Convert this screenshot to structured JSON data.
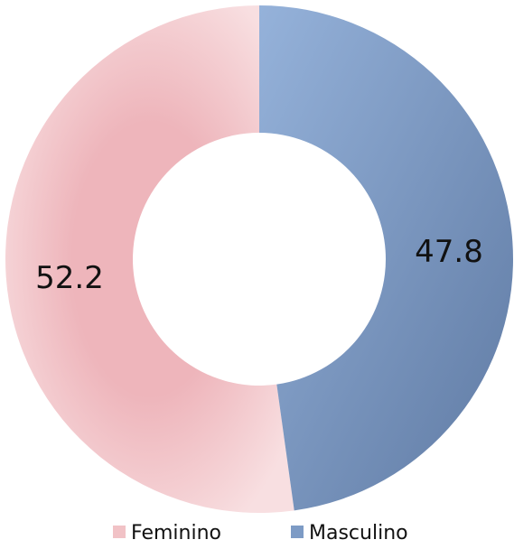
{
  "chart_data": {
    "type": "donut",
    "categories": [
      "Feminino",
      "Masculino"
    ],
    "values": [
      52.2,
      47.8
    ],
    "colors": [
      "#f1c2c6",
      "#7d9bc5"
    ],
    "legend": "bottom"
  }
}
